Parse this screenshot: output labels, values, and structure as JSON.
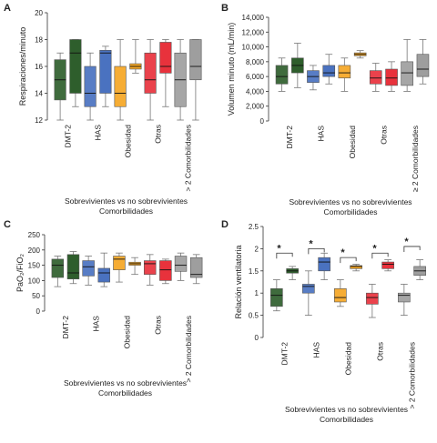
{
  "chart_data": [
    {
      "panel": "A",
      "type": "box",
      "ylabel": "Respiraciones/minuto",
      "xlabel_line1": "Sobrevivientes vs no sobrevivientes",
      "xlabel_line2": "Comorbilidades",
      "ylim": [
        12,
        20
      ],
      "yticks": [
        12,
        14,
        16,
        18,
        20
      ],
      "categories": [
        "DMT-2",
        "HAS",
        "Obesidad",
        "Otras",
        "> 2 Comorbilidades"
      ],
      "colors": [
        "#2e5e2c",
        "#4a72c0",
        "#f5a623",
        "#e8323c",
        "#9e9e9e"
      ],
      "boxes": [
        {
          "cat": 0,
          "min": 12,
          "q1": 13.5,
          "median": 15,
          "q3": 16.5,
          "max": 17
        },
        {
          "cat": 0,
          "min": 13,
          "q1": 14,
          "median": 17,
          "q3": 18,
          "max": 18
        },
        {
          "cat": 1,
          "min": 12,
          "q1": 13,
          "median": 14,
          "q3": 16,
          "max": 17
        },
        {
          "cat": 1,
          "min": 13,
          "q1": 14,
          "median": 17,
          "q3": 17.2,
          "max": 17.5
        },
        {
          "cat": 2,
          "min": 12,
          "q1": 13,
          "median": 14,
          "q3": 16,
          "max": 18
        },
        {
          "cat": 2,
          "min": 15.5,
          "q1": 15.8,
          "median": 16,
          "q3": 16.2,
          "max": 18
        },
        {
          "cat": 3,
          "min": 12,
          "q1": 14,
          "median": 15,
          "q3": 17,
          "max": 18
        },
        {
          "cat": 3,
          "min": 13,
          "q1": 15.5,
          "median": 16,
          "q3": 17.8,
          "max": 18
        },
        {
          "cat": 4,
          "min": 12,
          "q1": 13,
          "median": 15,
          "q3": 17,
          "max": 18
        },
        {
          "cat": 4,
          "min": 12,
          "q1": 15,
          "median": 16,
          "q3": 18,
          "max": 18
        }
      ],
      "stars": []
    },
    {
      "panel": "B",
      "type": "box",
      "ylabel": "Volumen minuto (mL/min)",
      "xlabel_line1": "Sobrevivientes vs no sobrevivientes",
      "xlabel_line2": "Comorbilidades",
      "ylim": [
        0,
        14000
      ],
      "yticks": [
        0,
        2000,
        4000,
        6000,
        8000,
        10000,
        12000,
        14000
      ],
      "ytick_labels": [
        "0",
        "2,000",
        "4,000",
        "6,000",
        "8,000",
        "10,000",
        "12,000",
        "14,000"
      ],
      "categories": [
        "DMT-2",
        "HAS",
        "Obesidad",
        "Otras",
        "≥ 2 Comorbilidades"
      ],
      "colors": [
        "#2e5e2c",
        "#4a72c0",
        "#f5a623",
        "#e8323c",
        "#9e9e9e"
      ],
      "boxes": [
        {
          "cat": 0,
          "min": 4000,
          "q1": 5000,
          "median": 6000,
          "q3": 7500,
          "max": 8500
        },
        {
          "cat": 0,
          "min": 4500,
          "q1": 6500,
          "median": 7500,
          "q3": 8500,
          "max": 10500
        },
        {
          "cat": 1,
          "min": 4200,
          "q1": 5200,
          "median": 6000,
          "q3": 6800,
          "max": 7500
        },
        {
          "cat": 1,
          "min": 5000,
          "q1": 6000,
          "median": 6500,
          "q3": 7500,
          "max": 9000
        },
        {
          "cat": 2,
          "min": 4000,
          "q1": 5800,
          "median": 6500,
          "q3": 7500,
          "max": 8500
        },
        {
          "cat": 2,
          "min": 8500,
          "q1": 8800,
          "median": 9000,
          "q3": 9200,
          "max": 9500
        },
        {
          "cat": 3,
          "min": 4000,
          "q1": 5000,
          "median": 5800,
          "q3": 6800,
          "max": 7800
        },
        {
          "cat": 3,
          "min": 4000,
          "q1": 4800,
          "median": 5800,
          "q3": 7000,
          "max": 8000
        },
        {
          "cat": 4,
          "min": 4000,
          "q1": 4800,
          "median": 6500,
          "q3": 8000,
          "max": 11000
        },
        {
          "cat": 4,
          "min": 5000,
          "q1": 6000,
          "median": 7000,
          "q3": 9000,
          "max": 11000
        }
      ],
      "stars": []
    },
    {
      "panel": "C",
      "type": "box",
      "ylabel": "PaO₂/FiO₂",
      "xlabel_line1": "Sobrevivientes vs no sobrevivientes",
      "xlabel_line2": "Comorbilidades",
      "ylim": [
        0,
        250
      ],
      "yticks": [
        0,
        50,
        100,
        150,
        200,
        250
      ],
      "categories": [
        "DMT-2",
        "HAS",
        "Obesidad",
        "Otras",
        "> 2 Comorbilidades"
      ],
      "colors": [
        "#2e5e2c",
        "#4a72c0",
        "#f5a623",
        "#e8323c",
        "#9e9e9e"
      ],
      "boxes": [
        {
          "cat": 0,
          "min": 80,
          "q1": 110,
          "median": 150,
          "q3": 170,
          "max": 180
        },
        {
          "cat": 0,
          "min": 90,
          "q1": 105,
          "median": 125,
          "q3": 185,
          "max": 195
        },
        {
          "cat": 1,
          "min": 85,
          "q1": 115,
          "median": 145,
          "q3": 165,
          "max": 180
        },
        {
          "cat": 1,
          "min": 80,
          "q1": 95,
          "median": 125,
          "q3": 140,
          "max": 190
        },
        {
          "cat": 2,
          "min": 95,
          "q1": 135,
          "median": 170,
          "q3": 180,
          "max": 190
        },
        {
          "cat": 2,
          "min": 120,
          "q1": 150,
          "median": 155,
          "q3": 160,
          "max": 175
        },
        {
          "cat": 3,
          "min": 85,
          "q1": 120,
          "median": 155,
          "q3": 165,
          "max": 185
        },
        {
          "cat": 3,
          "min": 90,
          "q1": 100,
          "median": 135,
          "q3": 165,
          "max": 170
        },
        {
          "cat": 4,
          "min": 100,
          "q1": 130,
          "median": 150,
          "q3": 180,
          "max": 190
        },
        {
          "cat": 4,
          "min": 90,
          "q1": 110,
          "median": 120,
          "q3": 175,
          "max": 185
        }
      ],
      "stars": []
    },
    {
      "panel": "D",
      "type": "box",
      "ylabel": "Relación ventilatoria",
      "xlabel_line1": "Sobrevivientes vs no sobrevivientes",
      "xlabel_line2": "Comorbilidades",
      "ylim": [
        0,
        2.5
      ],
      "yticks": [
        0,
        0.5,
        1,
        1.5,
        2,
        2.5
      ],
      "ytick_labels": [
        "0",
        "0.5",
        "1",
        "1.5",
        "2",
        "2.5"
      ],
      "categories": [
        "DMT-2",
        "HAS",
        "Obesidad",
        "Otras",
        "> 2 Comorbilidades"
      ],
      "colors": [
        "#2e5e2c",
        "#4a72c0",
        "#f5a623",
        "#e8323c",
        "#9e9e9e"
      ],
      "boxes": [
        {
          "cat": 0,
          "min": 0.6,
          "q1": 0.7,
          "median": 0.95,
          "q3": 1.1,
          "max": 1.3
        },
        {
          "cat": 0,
          "min": 1.3,
          "q1": 1.45,
          "median": 1.5,
          "q3": 1.55,
          "max": 1.6
        },
        {
          "cat": 1,
          "min": 0.5,
          "q1": 1.0,
          "median": 1.15,
          "q3": 1.2,
          "max": 1.5
        },
        {
          "cat": 1,
          "min": 1.3,
          "q1": 1.5,
          "median": 1.7,
          "q3": 1.8,
          "max": 1.9
        },
        {
          "cat": 2,
          "min": 0.7,
          "q1": 0.8,
          "median": 0.9,
          "q3": 1.1,
          "max": 1.3
        },
        {
          "cat": 2,
          "min": 1.5,
          "q1": 1.55,
          "median": 1.6,
          "q3": 1.62,
          "max": 1.65
        },
        {
          "cat": 3,
          "min": 0.45,
          "q1": 0.75,
          "median": 0.9,
          "q3": 1.0,
          "max": 1.2
        },
        {
          "cat": 3,
          "min": 1.5,
          "q1": 1.55,
          "median": 1.65,
          "q3": 1.7,
          "max": 1.75
        },
        {
          "cat": 4,
          "min": 0.5,
          "q1": 0.8,
          "median": 0.95,
          "q3": 1.0,
          "max": 1.2
        },
        {
          "cat": 4,
          "min": 1.3,
          "q1": 1.4,
          "median": 1.5,
          "q3": 1.6,
          "max": 1.75
        }
      ],
      "stars": [
        {
          "cat": 0,
          "label": "*",
          "y": 1.9
        },
        {
          "cat": 1,
          "label": "*",
          "y": 2.0
        },
        {
          "cat": 2,
          "label": "*",
          "y": 1.8
        },
        {
          "cat": 3,
          "label": "*",
          "y": 1.9
        },
        {
          "cat": 4,
          "label": "*",
          "y": 2.05
        }
      ]
    }
  ]
}
